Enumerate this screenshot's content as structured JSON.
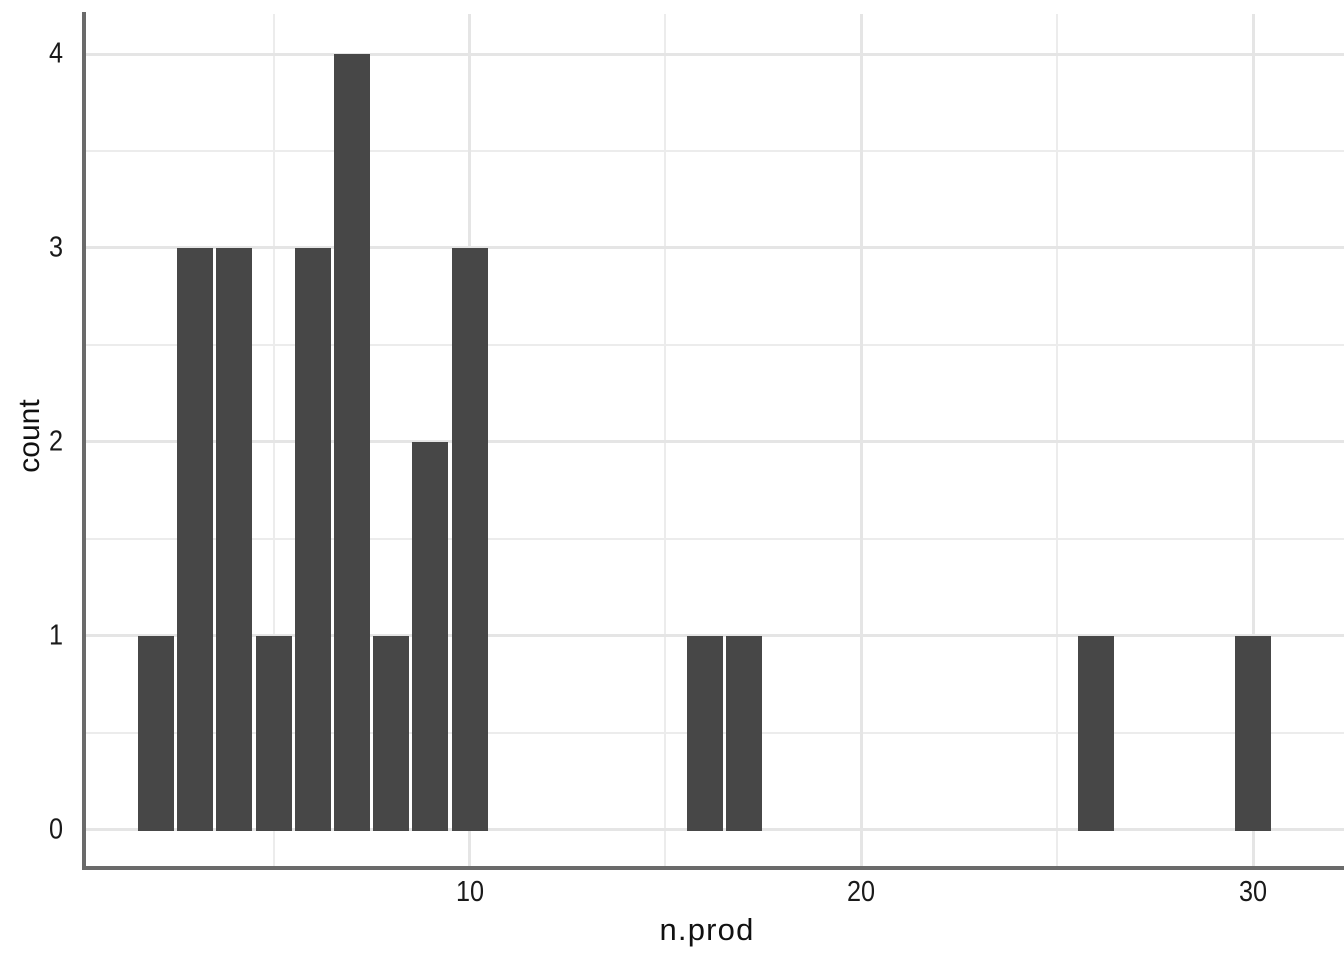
{
  "chart_data": {
    "type": "bar",
    "subtype": "histogram",
    "title": "",
    "xlabel": "n.prod",
    "ylabel": "count",
    "bars": [
      {
        "x": 2,
        "count": 1
      },
      {
        "x": 3,
        "count": 3
      },
      {
        "x": 4,
        "count": 3
      },
      {
        "x": 5,
        "count": 1
      },
      {
        "x": 6,
        "count": 3
      },
      {
        "x": 7,
        "count": 4
      },
      {
        "x": 8,
        "count": 1
      },
      {
        "x": 9,
        "count": 2
      },
      {
        "x": 10,
        "count": 3
      },
      {
        "x": 16,
        "count": 1
      },
      {
        "x": 17,
        "count": 1
      },
      {
        "x": 26,
        "count": 1
      },
      {
        "x": 30,
        "count": 1
      }
    ],
    "binwidth": 1,
    "xlim": [
      0.2,
      32.2
    ],
    "ylim": [
      0,
      4.2
    ],
    "x_major_ticks": [
      10,
      20,
      30
    ],
    "x_minor_ticks": [
      5,
      15,
      25
    ],
    "y_major_ticks": [
      0,
      1,
      2,
      3,
      4
    ],
    "y_minor_ticks": [
      0.5,
      1.5,
      2.5,
      3.5
    ],
    "grid": "major+minor",
    "legend": "none",
    "bar_color": "#474747",
    "grid_major_color": "#e5e5e5",
    "grid_minor_color": "#ececec",
    "axis_line_color": "#6a6a6a",
    "text_color": "#1a1a1a"
  }
}
